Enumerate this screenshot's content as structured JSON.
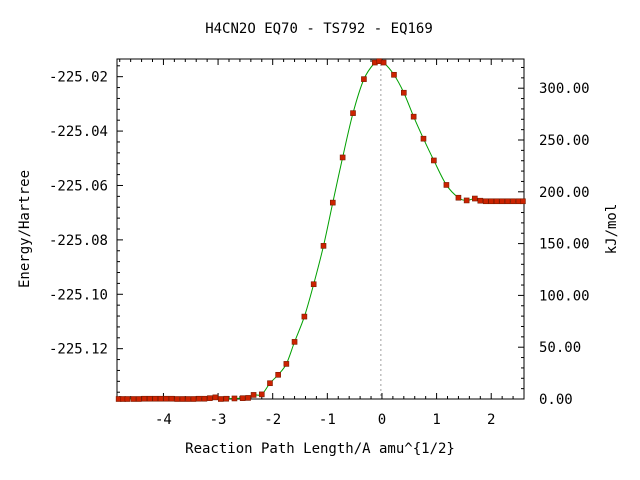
{
  "chart_data": {
    "type": "line",
    "title": "H4CN2O   EQ70 - TS792 - EQ169",
    "xlabel": "Reaction Path Length/A amu^{1/2}",
    "ylabel": "Energy/Hartree",
    "y2label": "kJ/mol",
    "xlim": [
      -4.85,
      2.6
    ],
    "ylim": [
      -225.1385,
      -225.0135
    ],
    "x_ticks": [
      -4,
      -3,
      -2,
      -1,
      0,
      1,
      2
    ],
    "x_tick_labels": [
      "-4",
      "-3",
      "-2",
      "-1",
      "0",
      "1",
      "2"
    ],
    "y_ticks": [
      -225.02,
      -225.04,
      -225.06,
      -225.08,
      -225.1,
      -225.12
    ],
    "y_tick_labels": [
      "-225.02",
      "-225.04",
      "-225.06",
      "-225.08",
      "-225.10",
      "-225.12"
    ],
    "y2_ticks": [
      300,
      250,
      200,
      150,
      100,
      50,
      0
    ],
    "y2_tick_labels": [
      "300.00",
      "250.00",
      "200.00",
      "150.00",
      "100.00",
      "50.00",
      "0.00"
    ],
    "y2_zero_energy": -225.1385,
    "hartree_to_kjmol": 2625.5,
    "ts_x": -0.02,
    "grid": false,
    "legend": "none",
    "series": [
      {
        "curve_color": "#00a000",
        "point_color": "#cc2200",
        "x": [
          -4.82,
          -4.74,
          -4.66,
          -4.55,
          -4.45,
          -4.35,
          -4.25,
          -4.15,
          -4.05,
          -3.95,
          -3.85,
          -3.75,
          -3.65,
          -3.55,
          -3.45,
          -3.35,
          -3.25,
          -3.15,
          -3.05,
          -2.95,
          -2.85,
          -2.7,
          -2.55,
          -2.45,
          -2.35,
          -2.2,
          -2.05,
          -1.9,
          -1.75,
          -1.6,
          -1.42,
          -1.25,
          -1.07,
          -0.9,
          -0.72,
          -0.53,
          -0.33,
          -0.13,
          -0.05,
          0.03,
          0.22,
          0.4,
          0.58,
          0.76,
          0.95,
          1.18,
          1.4,
          1.55,
          1.7,
          1.8,
          1.9,
          2.0,
          2.1,
          2.2,
          2.3,
          2.4,
          2.5,
          2.58
        ],
        "y": [
          -225.1385,
          -225.1385,
          -225.1385,
          -225.1385,
          -225.1385,
          -225.1384,
          -225.1384,
          -225.1384,
          -225.1384,
          -225.1384,
          -225.1384,
          -225.1385,
          -225.1385,
          -225.1385,
          -225.1385,
          -225.1384,
          -225.1384,
          -225.1382,
          -225.1379,
          -225.1385,
          -225.1384,
          -225.1383,
          -225.1382,
          -225.1381,
          -225.137,
          -225.1368,
          -225.1327,
          -225.1296,
          -225.1256,
          -225.1175,
          -225.1082,
          -225.0963,
          -225.0822,
          -225.0663,
          -225.0497,
          -225.0334,
          -225.0209,
          -225.0148,
          -225.0143,
          -225.0148,
          -225.0193,
          -225.0259,
          -225.0347,
          -225.0428,
          -225.0508,
          -225.0598,
          -225.0645,
          -225.0655,
          -225.0648,
          -225.0656,
          -225.0658,
          -225.0658,
          -225.0658,
          -225.0658,
          -225.0658,
          -225.0658,
          -225.0658,
          -225.0658
        ]
      }
    ]
  }
}
